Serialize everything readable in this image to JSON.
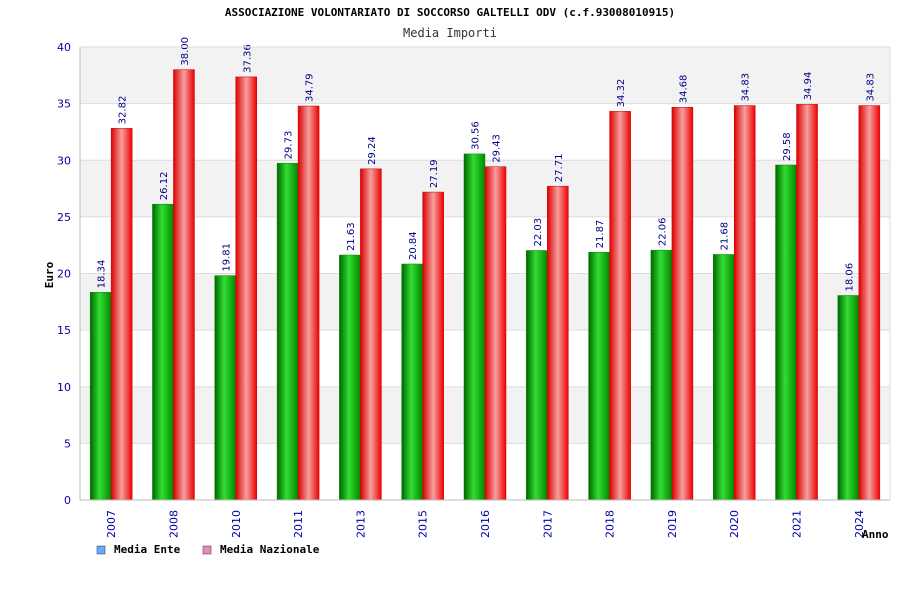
{
  "chart_data": {
    "type": "bar",
    "title": "ASSOCIAZIONE VOLONTARIATO DI SOCCORSO GALTELLI ODV (c.f.93008010915)",
    "subtitle": "Media Importi",
    "xlabel": "Anno",
    "ylabel": "Euro",
    "ylim": [
      0,
      40
    ],
    "yticks": [
      "0",
      "5",
      "10",
      "15",
      "20",
      "25",
      "30",
      "35",
      "40"
    ],
    "grid": true,
    "legend_position": "bottom-left",
    "categories": [
      "2007",
      "2008",
      "2010",
      "2011",
      "2013",
      "2015",
      "2016",
      "2017",
      "2018",
      "2019",
      "2020",
      "2021",
      "2024"
    ],
    "series": [
      {
        "name": "Media Ente",
        "color": "#00aa00",
        "legend_swatch": "#66aaff",
        "values": [
          18.34,
          26.12,
          19.81,
          29.73,
          21.63,
          20.84,
          30.56,
          22.03,
          21.87,
          22.06,
          21.68,
          29.58,
          18.06
        ],
        "labels": [
          "18.34",
          "26.12",
          "19.81",
          "29.73",
          "21.63",
          "20.84",
          "30.56",
          "22.03",
          "21.87",
          "22.06",
          "21.68",
          "29.58",
          "18.06"
        ]
      },
      {
        "name": "Media Nazionale",
        "color": "#ee0000",
        "legend_swatch": "#ee88bb",
        "values": [
          32.82,
          38.0,
          37.36,
          34.79,
          29.24,
          27.19,
          29.43,
          27.71,
          34.32,
          34.68,
          34.83,
          34.94,
          34.83
        ],
        "labels": [
          "32.82",
          "38.00",
          "37.36",
          "34.79",
          "29.24",
          "27.19",
          "29.43",
          "27.71",
          "34.32",
          "34.68",
          "34.83",
          "34.94",
          "34.83"
        ]
      }
    ]
  }
}
